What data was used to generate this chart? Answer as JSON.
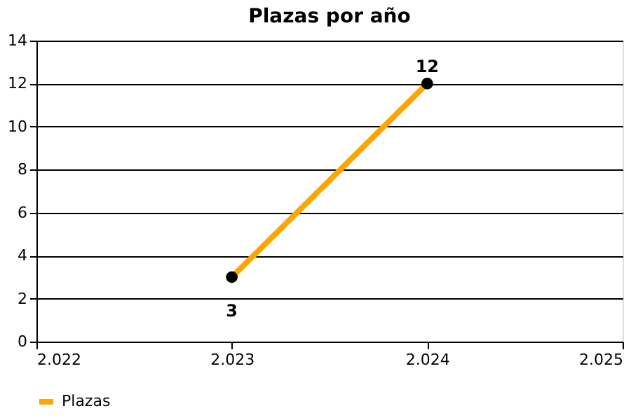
{
  "chart_data": {
    "type": "line",
    "title": "Plazas por año",
    "x": [
      2023,
      2024
    ],
    "series": [
      {
        "name": "Plazas",
        "color": "#ffa500",
        "values": [
          3,
          12
        ]
      }
    ],
    "xlim": [
      2022,
      2025
    ],
    "xticks": [
      {
        "value": 2022,
        "label": "2.022"
      },
      {
        "value": 2023,
        "label": "2.023"
      },
      {
        "value": 2024,
        "label": "2.024"
      },
      {
        "value": 2025,
        "label": "2.025"
      }
    ],
    "ylim": [
      0,
      14
    ],
    "yticks": [
      0,
      2,
      4,
      6,
      8,
      10,
      12,
      14
    ],
    "grid": "y",
    "legend": "bottom left",
    "marker": "circle",
    "line_style": "solid",
    "data_labels": true
  }
}
